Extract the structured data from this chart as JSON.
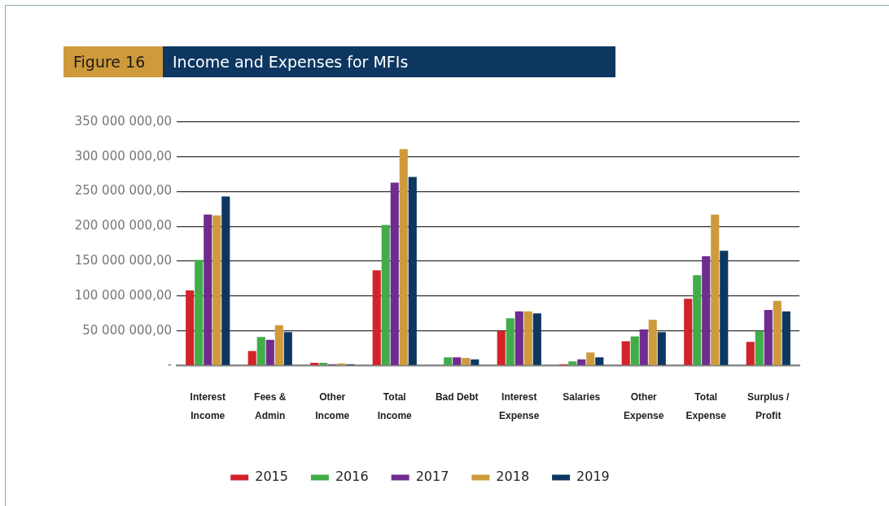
{
  "chart_data": {
    "type": "bar",
    "title": "Income and Expenses for MFIs",
    "annotations": [
      "Figure 16"
    ],
    "categories": [
      "Interest\nIncome",
      "Fees &\nAdmin",
      "Other\nIncome",
      "Total\nIncome",
      "Bad Debt",
      "Interest\nExpense",
      "Salaries",
      "Other\nExpense",
      "Total\nExpense",
      "Surplus /\nProfit"
    ],
    "series": [
      {
        "name": "2015",
        "color": "#d2232a",
        "values": [
          108000000,
          21000000,
          4000000,
          137000000,
          0,
          50000000,
          2000000,
          35000000,
          96000000,
          34000000
        ]
      },
      {
        "name": "2016",
        "color": "#41ad49",
        "values": [
          152000000,
          41000000,
          4000000,
          202000000,
          12000000,
          68000000,
          6000000,
          42000000,
          130000000,
          50000000
        ]
      },
      {
        "name": "2017",
        "color": "#6f2c8f",
        "values": [
          217000000,
          37000000,
          2000000,
          263000000,
          12000000,
          78000000,
          9000000,
          52000000,
          157000000,
          80000000
        ]
      },
      {
        "name": "2018",
        "color": "#cf9a3c",
        "values": [
          216000000,
          58000000,
          3000000,
          311000000,
          11000000,
          78000000,
          19000000,
          66000000,
          217000000,
          93000000
        ]
      },
      {
        "name": "2019",
        "color": "#0d3761",
        "values": [
          243000000,
          48000000,
          2000000,
          271000000,
          9000000,
          75000000,
          12000000,
          48000000,
          165000000,
          78000000
        ]
      }
    ],
    "ylim": [
      0,
      350000000
    ],
    "yticks": [
      {
        "value": 0,
        "label": "-"
      },
      {
        "value": 50000000,
        "label": "50 000 000,00"
      },
      {
        "value": 100000000,
        "label": "100 000 000,00"
      },
      {
        "value": 150000000,
        "label": "150 000 000,00"
      },
      {
        "value": 200000000,
        "label": "200 000 000,00"
      },
      {
        "value": 250000000,
        "label": "250 000 000,00"
      },
      {
        "value": 300000000,
        "label": "300 000 000,00"
      },
      {
        "value": 350000000,
        "label": "350 000 000,00"
      }
    ],
    "grid": "y",
    "legend": "bottom"
  }
}
